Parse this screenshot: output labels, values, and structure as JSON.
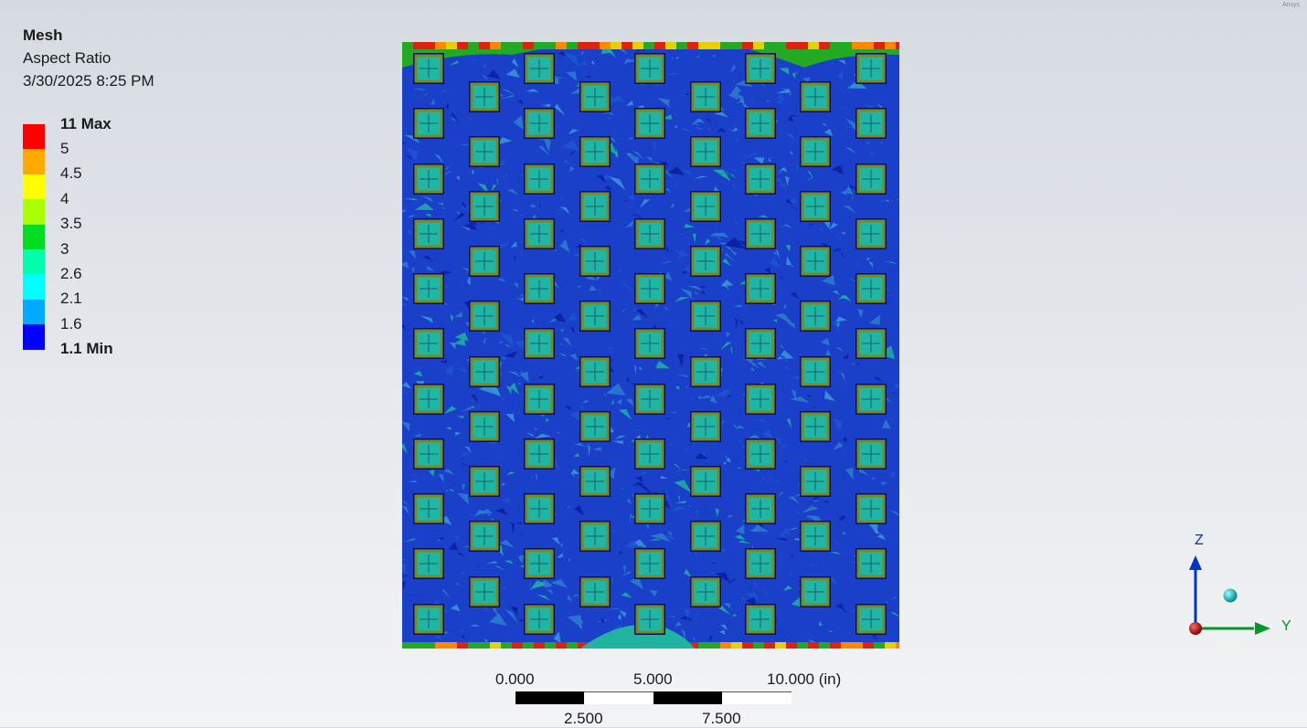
{
  "header": {
    "title": "Mesh",
    "subtitle": "Aspect Ratio",
    "timestamp": "3/30/2025 8:25 PM"
  },
  "legend": {
    "entries": [
      {
        "label": "11 Max",
        "color": "#ff0000",
        "bold": true
      },
      {
        "label": "5",
        "color": "#ffaa00",
        "bold": false
      },
      {
        "label": "4.5",
        "color": "#ffff00",
        "bold": false
      },
      {
        "label": "4",
        "color": "#aaff00",
        "bold": false
      },
      {
        "label": "3.5",
        "color": "#00dd22",
        "bold": false
      },
      {
        "label": "3",
        "color": "#00ffaa",
        "bold": false
      },
      {
        "label": "2.6",
        "color": "#00ffff",
        "bold": false
      },
      {
        "label": "2.1",
        "color": "#00aaff",
        "bold": false
      },
      {
        "label": "1.6",
        "color": "#0000ff",
        "bold": false
      },
      {
        "label": "1.1 Min",
        "color": null,
        "bold": true
      }
    ]
  },
  "scale_bar": {
    "top_labels": [
      "0.000",
      "5.000",
      "10.000 (in)"
    ],
    "bottom_labels": [
      "2.500",
      "7.500"
    ]
  },
  "triad": {
    "z_label": "Z",
    "y_label": "Y",
    "z_color": "#0033cc",
    "y_color": "#009922",
    "origin_color": "#cc0000",
    "iso_ball_color": "#00b3b3"
  },
  "brand": "Ansys",
  "mesh_colors": {
    "background": "#1a3fc8",
    "dark": "#0a1e9e",
    "mid": "#2d7fcf",
    "teal": "#1fb3a0",
    "hole_fill": "#20b6a6",
    "hole_frame": "#7a8a22",
    "edge_red": "#e02010",
    "edge_green": "#22aa22",
    "edge_yellow": "#e8d000"
  }
}
